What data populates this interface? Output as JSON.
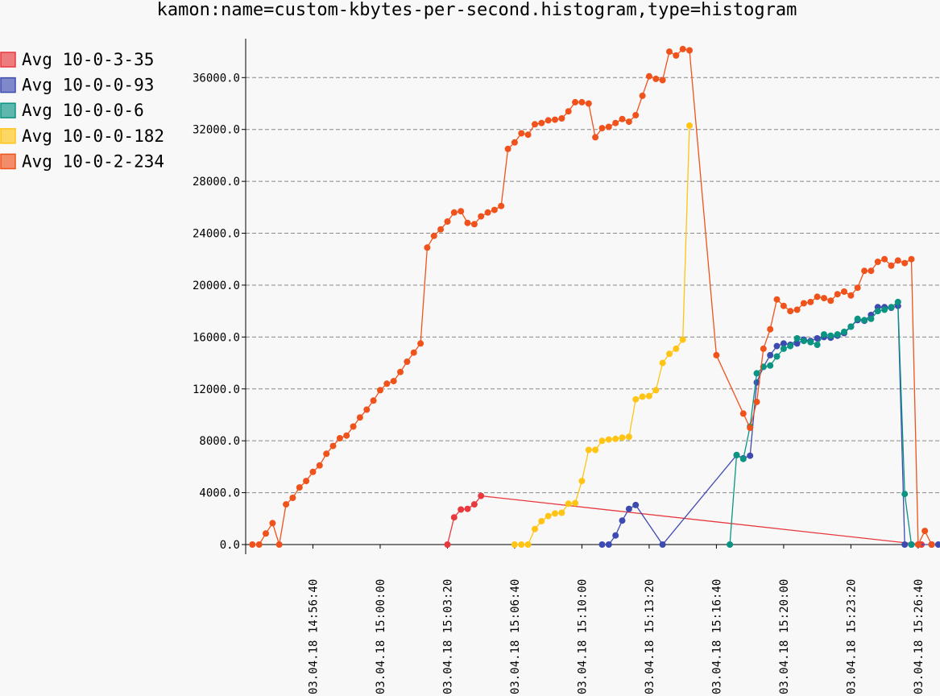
{
  "chart_data": {
    "type": "line",
    "title": "kamon:name=custom-kbytes-per-second.histogram,type=histogram",
    "xlabel": "",
    "ylabel": "",
    "ylim": [
      0,
      39000
    ],
    "xlim": [
      "2018-03-04 14:53:20",
      "2018-03-04 15:27:45"
    ],
    "grid": true,
    "legend_position": "left",
    "y_ticks": [
      "0.0",
      "4000.0",
      "8000.0",
      "12000.0",
      "16000.0",
      "20000.0",
      "24000.0",
      "28000.0",
      "32000.0",
      "36000.0"
    ],
    "x_ticks": [
      "03.04.18 14:56:40",
      "03.04.18 15:00:00",
      "03.04.18 15:03:20",
      "03.04.18 15:06:40",
      "03.04.18 15:10:00",
      "03.04.18 15:13:20",
      "03.04.18 15:16:40",
      "03.04.18 15:20:00",
      "03.04.18 15:23:20",
      "03.04.18 15:26:40"
    ],
    "series": [
      {
        "name": "Avg 10-0-3-35",
        "color": "#e8393e",
        "points": [
          [
            "15:03:20",
            0
          ],
          [
            "15:03:40",
            2100
          ],
          [
            "15:04:00",
            2700
          ],
          [
            "15:04:20",
            2750
          ],
          [
            "15:04:40",
            3100
          ],
          [
            "15:05:00",
            3750
          ],
          [
            "15:26:50",
            0
          ]
        ]
      },
      {
        "name": "Avg 10-0-0-93",
        "color": "#3d4bb0",
        "points": [
          [
            "15:11:00",
            0
          ],
          [
            "15:11:20",
            0
          ],
          [
            "15:11:40",
            700
          ],
          [
            "15:12:00",
            1850
          ],
          [
            "15:12:20",
            2750
          ],
          [
            "15:12:40",
            3050
          ],
          [
            "15:14:00",
            0
          ],
          [
            "15:17:40",
            6900
          ],
          [
            "15:18:00",
            6650
          ],
          [
            "15:18:20",
            6850
          ],
          [
            "15:18:40",
            12500
          ],
          [
            "15:19:00",
            13700
          ],
          [
            "15:19:20",
            14600
          ],
          [
            "15:19:40",
            15300
          ],
          [
            "15:20:00",
            15500
          ],
          [
            "15:20:20",
            15400
          ],
          [
            "15:20:40",
            15500
          ],
          [
            "15:21:00",
            15800
          ],
          [
            "15:21:20",
            15700
          ],
          [
            "15:21:40",
            15900
          ],
          [
            "15:22:00",
            16000
          ],
          [
            "15:22:20",
            15950
          ],
          [
            "15:22:40",
            16100
          ],
          [
            "15:23:00",
            16300
          ],
          [
            "15:23:20",
            16800
          ],
          [
            "15:23:40",
            17300
          ],
          [
            "15:24:00",
            17250
          ],
          [
            "15:24:20",
            17700
          ],
          [
            "15:24:40",
            18300
          ],
          [
            "15:25:00",
            18300
          ],
          [
            "15:25:20",
            18250
          ],
          [
            "15:25:40",
            18400
          ],
          [
            "15:26:00",
            0
          ],
          [
            "15:26:20",
            0
          ],
          [
            "15:26:40",
            0
          ],
          [
            "15:27:20",
            0
          ],
          [
            "15:27:40",
            0
          ]
        ]
      },
      {
        "name": "Avg 10-0-0-6",
        "color": "#0b9482",
        "points": [
          [
            "15:17:20",
            0
          ],
          [
            "15:17:40",
            6900
          ],
          [
            "15:18:00",
            6600
          ],
          [
            "15:18:20",
            9100
          ],
          [
            "15:18:40",
            13200
          ],
          [
            "15:19:00",
            13700
          ],
          [
            "15:19:20",
            13800
          ],
          [
            "15:19:40",
            14500
          ],
          [
            "15:20:00",
            15100
          ],
          [
            "15:20:20",
            15300
          ],
          [
            "15:20:40",
            15900
          ],
          [
            "15:21:00",
            15700
          ],
          [
            "15:21:20",
            15600
          ],
          [
            "15:21:40",
            15400
          ],
          [
            "15:22:00",
            16200
          ],
          [
            "15:22:20",
            16100
          ],
          [
            "15:22:40",
            16200
          ],
          [
            "15:23:00",
            16400
          ],
          [
            "15:23:20",
            16800
          ],
          [
            "15:23:40",
            17400
          ],
          [
            "15:24:00",
            17300
          ],
          [
            "15:24:20",
            17400
          ],
          [
            "15:24:40",
            18000
          ],
          [
            "15:25:00",
            18100
          ],
          [
            "15:25:20",
            18300
          ],
          [
            "15:25:40",
            18700
          ],
          [
            "15:26:00",
            3900
          ],
          [
            "15:26:20",
            0
          ]
        ]
      },
      {
        "name": "Avg 10-0-0-182",
        "color": "#ffc414",
        "points": [
          [
            "15:06:40",
            0
          ],
          [
            "15:07:00",
            0
          ],
          [
            "15:07:20",
            0
          ],
          [
            "15:07:40",
            1200
          ],
          [
            "15:08:00",
            1800
          ],
          [
            "15:08:20",
            2200
          ],
          [
            "15:08:40",
            2400
          ],
          [
            "15:09:00",
            2450
          ],
          [
            "15:09:20",
            3150
          ],
          [
            "15:09:40",
            3200
          ],
          [
            "15:10:00",
            4900
          ],
          [
            "15:10:20",
            7300
          ],
          [
            "15:10:40",
            7300
          ],
          [
            "15:11:00",
            8000
          ],
          [
            "15:11:20",
            8100
          ],
          [
            "15:11:40",
            8150
          ],
          [
            "15:12:00",
            8250
          ],
          [
            "15:12:20",
            8300
          ],
          [
            "15:12:40",
            11200
          ],
          [
            "15:13:00",
            11400
          ],
          [
            "15:13:20",
            11450
          ],
          [
            "15:13:40",
            11900
          ],
          [
            "15:14:00",
            14000
          ],
          [
            "15:14:20",
            14700
          ],
          [
            "15:14:40",
            15100
          ],
          [
            "15:15:00",
            15800
          ],
          [
            "15:15:20",
            32300
          ]
        ]
      },
      {
        "name": "Avg 10-0-2-234",
        "color": "#f0521c",
        "points": [
          [
            "14:53:40",
            0
          ],
          [
            "14:54:00",
            0
          ],
          [
            "14:54:20",
            850
          ],
          [
            "14:54:40",
            1650
          ],
          [
            "14:55:00",
            0
          ],
          [
            "14:55:20",
            3100
          ],
          [
            "14:55:40",
            3600
          ],
          [
            "14:56:00",
            4400
          ],
          [
            "14:56:20",
            4900
          ],
          [
            "14:56:40",
            5600
          ],
          [
            "14:57:00",
            6100
          ],
          [
            "14:57:20",
            7000
          ],
          [
            "14:57:40",
            7600
          ],
          [
            "14:58:00",
            8200
          ],
          [
            "14:58:20",
            8400
          ],
          [
            "14:58:40",
            9100
          ],
          [
            "14:59:00",
            9800
          ],
          [
            "14:59:20",
            10400
          ],
          [
            "14:59:40",
            11100
          ],
          [
            "15:00:00",
            11900
          ],
          [
            "15:00:20",
            12400
          ],
          [
            "15:00:40",
            12600
          ],
          [
            "15:01:00",
            13300
          ],
          [
            "15:01:20",
            14100
          ],
          [
            "15:01:40",
            14800
          ],
          [
            "15:02:00",
            15500
          ],
          [
            "15:02:20",
            22900
          ],
          [
            "15:02:40",
            23800
          ],
          [
            "15:03:00",
            24300
          ],
          [
            "15:03:20",
            24900
          ],
          [
            "15:03:40",
            25600
          ],
          [
            "15:04:00",
            25700
          ],
          [
            "15:04:20",
            24800
          ],
          [
            "15:04:40",
            24700
          ],
          [
            "15:05:00",
            25300
          ],
          [
            "15:05:20",
            25600
          ],
          [
            "15:05:40",
            25800
          ],
          [
            "15:06:00",
            26100
          ],
          [
            "15:06:20",
            30500
          ],
          [
            "15:06:40",
            31000
          ],
          [
            "15:07:00",
            31700
          ],
          [
            "15:07:20",
            31600
          ],
          [
            "15:07:40",
            32400
          ],
          [
            "15:08:00",
            32500
          ],
          [
            "15:08:20",
            32700
          ],
          [
            "15:08:40",
            32750
          ],
          [
            "15:09:00",
            32850
          ],
          [
            "15:09:20",
            33400
          ],
          [
            "15:09:40",
            34100
          ],
          [
            "15:10:00",
            34100
          ],
          [
            "15:10:20",
            34000
          ],
          [
            "15:10:40",
            31400
          ],
          [
            "15:11:00",
            32100
          ],
          [
            "15:11:20",
            32200
          ],
          [
            "15:11:40",
            32500
          ],
          [
            "15:12:00",
            32800
          ],
          [
            "15:12:20",
            32600
          ],
          [
            "15:12:40",
            33100
          ],
          [
            "15:13:00",
            34600
          ],
          [
            "15:13:20",
            36100
          ],
          [
            "15:13:40",
            35900
          ],
          [
            "15:14:00",
            35800
          ],
          [
            "15:14:20",
            38000
          ],
          [
            "15:14:40",
            37700
          ],
          [
            "15:15:00",
            38200
          ],
          [
            "15:15:20",
            38100
          ],
          [
            "15:16:40",
            14600
          ],
          [
            "15:18:00",
            10100
          ],
          [
            "15:18:20",
            9000
          ],
          [
            "15:18:40",
            11000
          ],
          [
            "15:19:00",
            15100
          ],
          [
            "15:19:20",
            16600
          ],
          [
            "15:19:40",
            18900
          ],
          [
            "15:20:00",
            18400
          ],
          [
            "15:20:20",
            18000
          ],
          [
            "15:20:40",
            18100
          ],
          [
            "15:21:00",
            18600
          ],
          [
            "15:21:20",
            18700
          ],
          [
            "15:21:40",
            19100
          ],
          [
            "15:22:00",
            19000
          ],
          [
            "15:22:20",
            18800
          ],
          [
            "15:22:40",
            19300
          ],
          [
            "15:23:00",
            19500
          ],
          [
            "15:23:20",
            19200
          ],
          [
            "15:23:40",
            19800
          ],
          [
            "15:24:00",
            21100
          ],
          [
            "15:24:20",
            21100
          ],
          [
            "15:24:40",
            21800
          ],
          [
            "15:25:00",
            22000
          ],
          [
            "15:25:20",
            21500
          ],
          [
            "15:25:40",
            21900
          ],
          [
            "15:26:00",
            21700
          ],
          [
            "15:26:20",
            22000
          ],
          [
            "15:26:40",
            0
          ],
          [
            "15:27:00",
            1050
          ],
          [
            "15:27:20",
            0
          ]
        ]
      }
    ]
  }
}
